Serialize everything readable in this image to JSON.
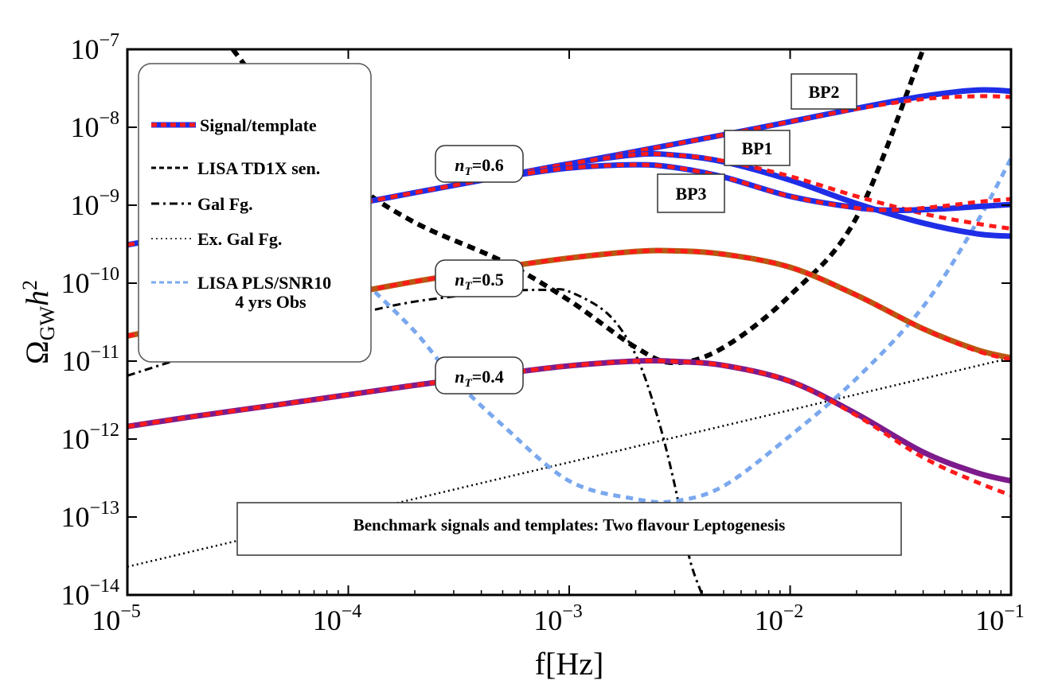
{
  "chart_data": {
    "type": "line",
    "xscale": "log",
    "yscale": "log",
    "xlim": [
      1e-05,
      0.1
    ],
    "ylim": [
      1e-14,
      1e-07
    ],
    "xlabel": "f[Hz]",
    "ylabel": "ΩGWh²",
    "x_ticks": [
      {
        "base": "10",
        "exp": "−5",
        "value": 1e-05
      },
      {
        "base": "10",
        "exp": "−4",
        "value": 0.0001
      },
      {
        "base": "10",
        "exp": "−3",
        "value": 0.001
      },
      {
        "base": "10",
        "exp": "−2",
        "value": 0.01
      },
      {
        "base": "10",
        "exp": "−1",
        "value": 0.1
      }
    ],
    "y_ticks": [
      {
        "base": "10",
        "exp": "−7",
        "value": 1e-07
      },
      {
        "base": "10",
        "exp": "−8",
        "value": 1e-08
      },
      {
        "base": "10",
        "exp": "−9",
        "value": 1e-09
      },
      {
        "base": "10",
        "exp": "−10",
        "value": 1e-10
      },
      {
        "base": "10",
        "exp": "−11",
        "value": 1e-11
      },
      {
        "base": "10",
        "exp": "−12",
        "value": 1e-12
      },
      {
        "base": "10",
        "exp": "−13",
        "value": 1e-13
      },
      {
        "base": "10",
        "exp": "−14",
        "value": 1e-14
      }
    ],
    "legend": [
      {
        "label": "Signal/template",
        "style": "signal"
      },
      {
        "label": "LISA TD1X sen.",
        "style": "dashed"
      },
      {
        "label": "Gal Fg.",
        "style": "dashdot"
      },
      {
        "label": "Ex. Gal Fg.",
        "style": "dotted"
      },
      {
        "label": "LISA PLS/SNR10",
        "label2": "4 yrs Obs",
        "style": "pls"
      }
    ],
    "annotations": [
      {
        "id": "bp2",
        "text": "BP2"
      },
      {
        "id": "bp1",
        "text": "BP1"
      },
      {
        "id": "bp3",
        "text": "BP3"
      },
      {
        "id": "nt06",
        "n": "n",
        "sub": "T",
        "val": "=0.6"
      },
      {
        "id": "nt05",
        "n": "n",
        "sub": "T",
        "val": "=0.5"
      },
      {
        "id": "nt04",
        "n": "n",
        "sub": "T",
        "val": "=0.4"
      }
    ],
    "caption": "Benchmark signals and templates: Two flavour Leptogenesis",
    "series": [
      {
        "name": "BP2 signal (nT=0.6)",
        "kind": "signal",
        "color": "#1f2ee6",
        "x": [
          1e-05,
          2e-05,
          5e-05,
          0.0001,
          0.0002,
          0.0005,
          0.001,
          0.002,
          0.005,
          0.01,
          0.02,
          0.04,
          0.07,
          0.1
        ],
        "y": [
          3.1e-10,
          4.4e-10,
          7e-10,
          1e-09,
          1.45e-09,
          2.35e-09,
          3.4e-09,
          4.9e-09,
          8e-09,
          1.18e-08,
          1.75e-08,
          2.5e-08,
          3e-08,
          2.9e-08
        ]
      },
      {
        "name": "BP2 template",
        "kind": "template",
        "color": "#ff1a1a",
        "x": [
          1e-05,
          2e-05,
          5e-05,
          0.0001,
          0.0002,
          0.0005,
          0.001,
          0.002,
          0.005,
          0.01,
          0.02,
          0.04,
          0.07,
          0.1
        ],
        "y": [
          3.1e-10,
          4.4e-10,
          7e-10,
          1e-09,
          1.45e-09,
          2.35e-09,
          3.4e-09,
          4.9e-09,
          8e-09,
          1.18e-08,
          1.72e-08,
          2.3e-08,
          2.5e-08,
          2.45e-08
        ]
      },
      {
        "name": "BP1 signal (nT=0.6)",
        "kind": "signal",
        "color": "#1f2ee6",
        "x": [
          0.0005,
          0.001,
          0.002,
          0.003,
          0.005,
          0.01,
          0.02,
          0.04,
          0.07,
          0.1
        ],
        "y": [
          2.35e-09,
          3.4e-09,
          4.45e-09,
          4.4e-09,
          3.6e-09,
          2.1e-09,
          1.05e-09,
          5.9e-10,
          4.3e-10,
          4e-10
        ]
      },
      {
        "name": "BP1 template",
        "kind": "template",
        "color": "#ff1a1a",
        "x": [
          0.0005,
          0.001,
          0.002,
          0.003,
          0.005,
          0.01,
          0.02,
          0.04,
          0.07,
          0.1
        ],
        "y": [
          2.35e-09,
          3.4e-09,
          4.45e-09,
          4.4e-09,
          3.7e-09,
          2.35e-09,
          1.3e-09,
          7.8e-10,
          5.8e-10,
          5e-10
        ]
      },
      {
        "name": "BP3 signal (nT=0.6)",
        "kind": "signal",
        "color": "#1f2ee6",
        "x": [
          0.0005,
          0.001,
          0.002,
          0.003,
          0.005,
          0.01,
          0.02,
          0.03,
          0.05,
          0.07,
          0.1
        ],
        "y": [
          2.3e-09,
          3e-09,
          3.3e-09,
          3.05e-09,
          2.3e-09,
          1.3e-09,
          9.3e-10,
          8.6e-10,
          9e-10,
          9.6e-10,
          1.02e-09
        ]
      },
      {
        "name": "BP3 template",
        "kind": "template",
        "color": "#ff1a1a",
        "x": [
          0.0005,
          0.001,
          0.002,
          0.003,
          0.005,
          0.01,
          0.02,
          0.03,
          0.05,
          0.07,
          0.1
        ],
        "y": [
          2.3e-09,
          3e-09,
          3.3e-09,
          3.05e-09,
          2.3e-09,
          1.3e-09,
          9.2e-10,
          8.7e-10,
          9.8e-10,
          1.1e-09,
          1.2e-09
        ]
      },
      {
        "name": "nT=0.5 signal",
        "kind": "signal",
        "color": "#b85a12",
        "x": [
          1e-05,
          2e-05,
          5e-05,
          0.0001,
          0.0002,
          0.0005,
          0.001,
          0.002,
          0.003,
          0.005,
          0.01,
          0.02,
          0.04,
          0.07,
          0.1
        ],
        "y": [
          2.1e-11,
          3.1e-11,
          5e-11,
          7.3e-11,
          1.05e-10,
          1.6e-10,
          2.1e-10,
          2.55e-10,
          2.6e-10,
          2.35e-10,
          1.6e-10,
          7e-11,
          2.6e-11,
          1.4e-11,
          1.1e-11
        ]
      },
      {
        "name": "nT=0.5 template",
        "kind": "template",
        "color": "#ff1a1a",
        "x": [
          1e-05,
          2e-05,
          5e-05,
          0.0001,
          0.0002,
          0.0005,
          0.001,
          0.002,
          0.003,
          0.005,
          0.01,
          0.02,
          0.04,
          0.07,
          0.1
        ],
        "y": [
          2.1e-11,
          3.1e-11,
          5e-11,
          7.3e-11,
          1.05e-10,
          1.6e-10,
          2.1e-10,
          2.55e-10,
          2.6e-10,
          2.35e-10,
          1.6e-10,
          7e-11,
          2.6e-11,
          1.35e-11,
          1.05e-11
        ]
      },
      {
        "name": "nT=0.4 signal",
        "kind": "signal",
        "color": "#7d1b8c",
        "x": [
          1e-05,
          2e-05,
          5e-05,
          0.0001,
          0.0002,
          0.0005,
          0.001,
          0.002,
          0.003,
          0.005,
          0.01,
          0.02,
          0.04,
          0.07,
          0.1
        ],
        "y": [
          1.45e-12,
          1.95e-12,
          2.8e-12,
          3.7e-12,
          4.9e-12,
          6.9e-12,
          8.7e-12,
          1e-11,
          9.9e-12,
          8.8e-12,
          5.5e-12,
          2.1e-12,
          6.8e-13,
          3.7e-13,
          2.9e-13
        ]
      },
      {
        "name": "nT=0.4 template",
        "kind": "template",
        "color": "#ff1a1a",
        "x": [
          1e-05,
          2e-05,
          5e-05,
          0.0001,
          0.0002,
          0.0005,
          0.001,
          0.002,
          0.003,
          0.005,
          0.01,
          0.02,
          0.04,
          0.07,
          0.1
        ],
        "y": [
          1.45e-12,
          1.95e-12,
          2.8e-12,
          3.7e-12,
          4.9e-12,
          6.9e-12,
          8.7e-12,
          1e-11,
          9.9e-12,
          8.8e-12,
          5.5e-12,
          2e-12,
          5.8e-13,
          2.8e-13,
          1.9e-13
        ]
      },
      {
        "name": "LISA TD1X sen.",
        "kind": "dashed",
        "color": "#000000",
        "x": [
          3e-05,
          5e-05,
          0.0001,
          0.0002,
          0.0005,
          0.001,
          0.002,
          0.003,
          0.005,
          0.01,
          0.02,
          0.04
        ],
        "y": [
          1e-07,
          1.6e-08,
          2.2e-09,
          6e-10,
          1.9e-10,
          6e-11,
          1.5e-11,
          9.5e-12,
          1.5e-11,
          7e-11,
          7e-10,
          1e-07
        ]
      },
      {
        "name": "Gal Fg.",
        "kind": "dashdot",
        "color": "#000000",
        "x": [
          1e-05,
          2e-05,
          5e-05,
          0.0001,
          0.0002,
          0.0005,
          0.0008,
          0.001,
          0.0015,
          0.002,
          0.0025,
          0.003,
          0.0035,
          0.004
        ],
        "y": [
          6.5e-12,
          1.2e-11,
          2.4e-11,
          3.8e-11,
          5.8e-11,
          7.8e-11,
          8.2e-11,
          7.8e-11,
          4e-11,
          1.2e-11,
          2e-12,
          2.6e-13,
          3e-14,
          1e-14
        ]
      },
      {
        "name": "Ex. Gal Fg.",
        "kind": "dotted",
        "color": "#000000",
        "x": [
          1e-05,
          0.1
        ],
        "y": [
          2.3e-14,
          1.1e-11
        ]
      },
      {
        "name": "LISA PLS/SNR10 4 yrs Obs",
        "kind": "pls",
        "color": "#7aa8ee",
        "x": [
          0.00012,
          0.0002,
          0.0003,
          0.0005,
          0.001,
          0.002,
          0.003,
          0.005,
          0.01,
          0.02,
          0.04,
          0.07,
          0.1
        ],
        "y": [
          1e-10,
          2.4e-11,
          6e-12,
          1.5e-12,
          2.9e-13,
          1.7e-13,
          1.6e-13,
          2.5e-13,
          1.1e-12,
          6e-12,
          5e-11,
          6e-10,
          4e-09
        ]
      }
    ]
  }
}
